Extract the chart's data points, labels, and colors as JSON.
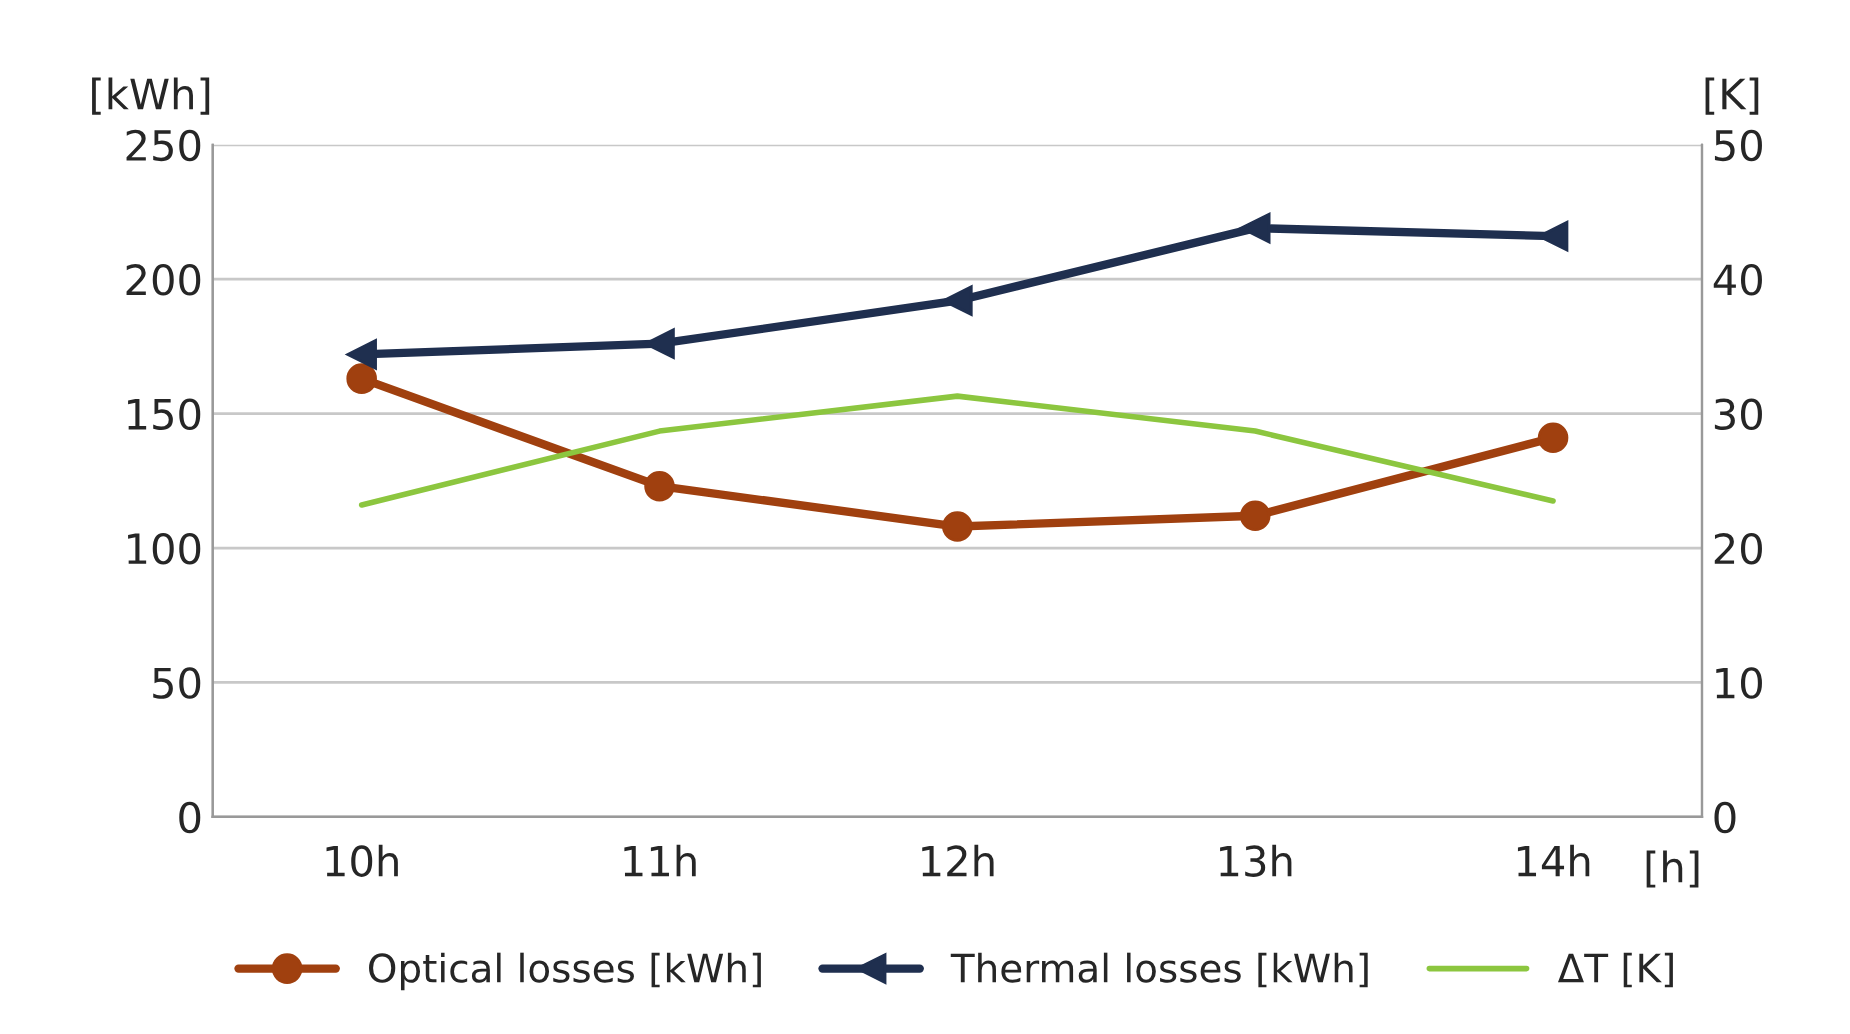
{
  "chart_data": {
    "type": "line",
    "categories": [
      "10h",
      "11h",
      "12h",
      "13h",
      "14h"
    ],
    "xlabel": "[h]",
    "ylabel": "[kWh]",
    "y2label": "[K]",
    "ylim": [
      0,
      250
    ],
    "yticks": [
      0,
      50,
      100,
      150,
      200,
      250
    ],
    "y2lim": [
      0,
      50
    ],
    "y2ticks": [
      0,
      10,
      20,
      30,
      40,
      50
    ],
    "grid": "y",
    "legend": "bottom",
    "series": [
      {
        "name": "Optical losses [kWh]",
        "color": "#a0400f",
        "marker": "circle",
        "values": [
          163,
          123,
          108,
          112,
          141
        ]
      },
      {
        "name": "Thermal losses [kWh]",
        "color": "#1f2f4f",
        "marker": "triangle",
        "values": [
          172,
          176,
          192,
          219,
          216
        ]
      },
      {
        "name": "ΔT [K]",
        "color": "#8cc63f",
        "marker": "none",
        "axis": "y2",
        "values": [
          23.2,
          28.7,
          31.3,
          28.7,
          23.5
        ]
      }
    ]
  }
}
